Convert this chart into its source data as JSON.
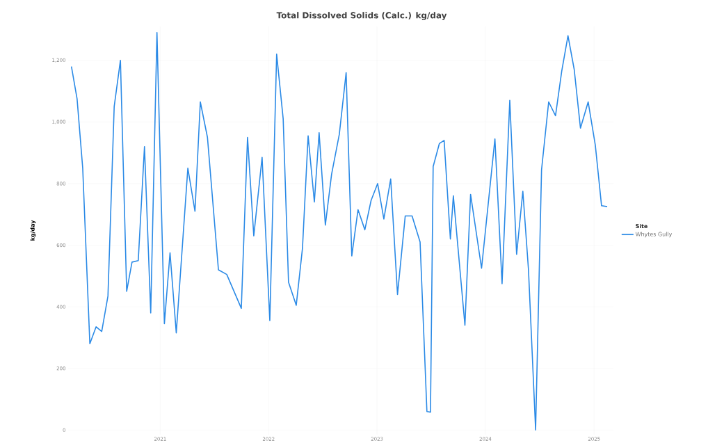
{
  "chart_data": {
    "type": "line",
    "title": "Total Dissolved Solids (Calc.) kg/day",
    "ylabel": "kg/day",
    "legend_title": "Site",
    "x": [
      "2020-03-08",
      "2020-03-27",
      "2020-04-15",
      "2020-05-09",
      "2020-05-30",
      "2020-06-18",
      "2020-07-09",
      "2020-07-30",
      "2020-08-20",
      "2020-09-10",
      "2020-09-28",
      "2020-10-19",
      "2020-11-09",
      "2020-11-30",
      "2020-12-21",
      "2021-01-15",
      "2021-02-03",
      "2021-02-24",
      "2021-04-04",
      "2021-04-28",
      "2021-05-16",
      "2021-06-09",
      "2021-07-16",
      "2021-08-13",
      "2021-10-01",
      "2021-10-22",
      "2021-11-12",
      "2021-12-10",
      "2022-01-05",
      "2022-01-28",
      "2022-02-19",
      "2022-03-09",
      "2022-04-04",
      "2022-04-25",
      "2022-05-14",
      "2022-06-04",
      "2022-06-20",
      "2022-07-11",
      "2022-08-01",
      "2022-08-27",
      "2022-09-19",
      "2022-10-08",
      "2022-10-29",
      "2022-11-21",
      "2022-12-12",
      "2023-01-03",
      "2023-01-24",
      "2023-02-16",
      "2023-03-11",
      "2023-04-06",
      "2023-04-29",
      "2023-05-26",
      "2023-06-18",
      "2023-06-30",
      "2023-07-09",
      "2023-07-30",
      "2023-08-15",
      "2023-09-05",
      "2023-09-15",
      "2023-10-24",
      "2023-11-12",
      "2023-12-19",
      "2024-02-02",
      "2024-02-26",
      "2024-03-23",
      "2024-04-15",
      "2024-05-06",
      "2024-05-25",
      "2024-06-18",
      "2024-07-08",
      "2024-08-01",
      "2024-08-24",
      "2024-09-14",
      "2024-10-05",
      "2024-10-26",
      "2024-11-16",
      "2024-12-12",
      "2025-01-05",
      "2025-01-26",
      "2025-02-14"
    ],
    "series": [
      {
        "name": "Whytes Gully",
        "color": "#2b8ae6",
        "values": [
          1180,
          1075,
          850,
          280,
          335,
          320,
          435,
          1050,
          1200,
          450,
          545,
          550,
          920,
          380,
          1290,
          345,
          575,
          315,
          850,
          710,
          1065,
          950,
          520,
          505,
          395,
          950,
          630,
          885,
          355,
          1220,
          1010,
          480,
          405,
          590,
          955,
          740,
          965,
          665,
          830,
          960,
          1160,
          565,
          715,
          650,
          745,
          800,
          685,
          815,
          440,
          695,
          695,
          610,
          60,
          58,
          855,
          930,
          940,
          620,
          760,
          340,
          765,
          525,
          945,
          475,
          1070,
          570,
          775,
          520,
          0,
          845,
          1065,
          1020,
          1165,
          1280,
          1170,
          980,
          1065,
          925,
          728,
          725
        ]
      }
    ],
    "xlim": [
      "2020-02-26",
      "2025-03-07"
    ],
    "ylim": [
      -15,
      1310
    ],
    "xticks": [
      {
        "value": "2021-01-01",
        "label": "2021"
      },
      {
        "value": "2022-01-01",
        "label": "2022"
      },
      {
        "value": "2023-01-01",
        "label": "2023"
      },
      {
        "value": "2024-01-01",
        "label": "2024"
      },
      {
        "value": "2025-01-01",
        "label": "2025"
      }
    ],
    "yticks": [
      0,
      200,
      400,
      600,
      800,
      {
        "value": 1000,
        "label": "1,000"
      },
      {
        "value": 1200,
        "label": "1,200"
      }
    ],
    "grid": true,
    "legend": "right",
    "line_style": "solid",
    "marker": "none"
  }
}
